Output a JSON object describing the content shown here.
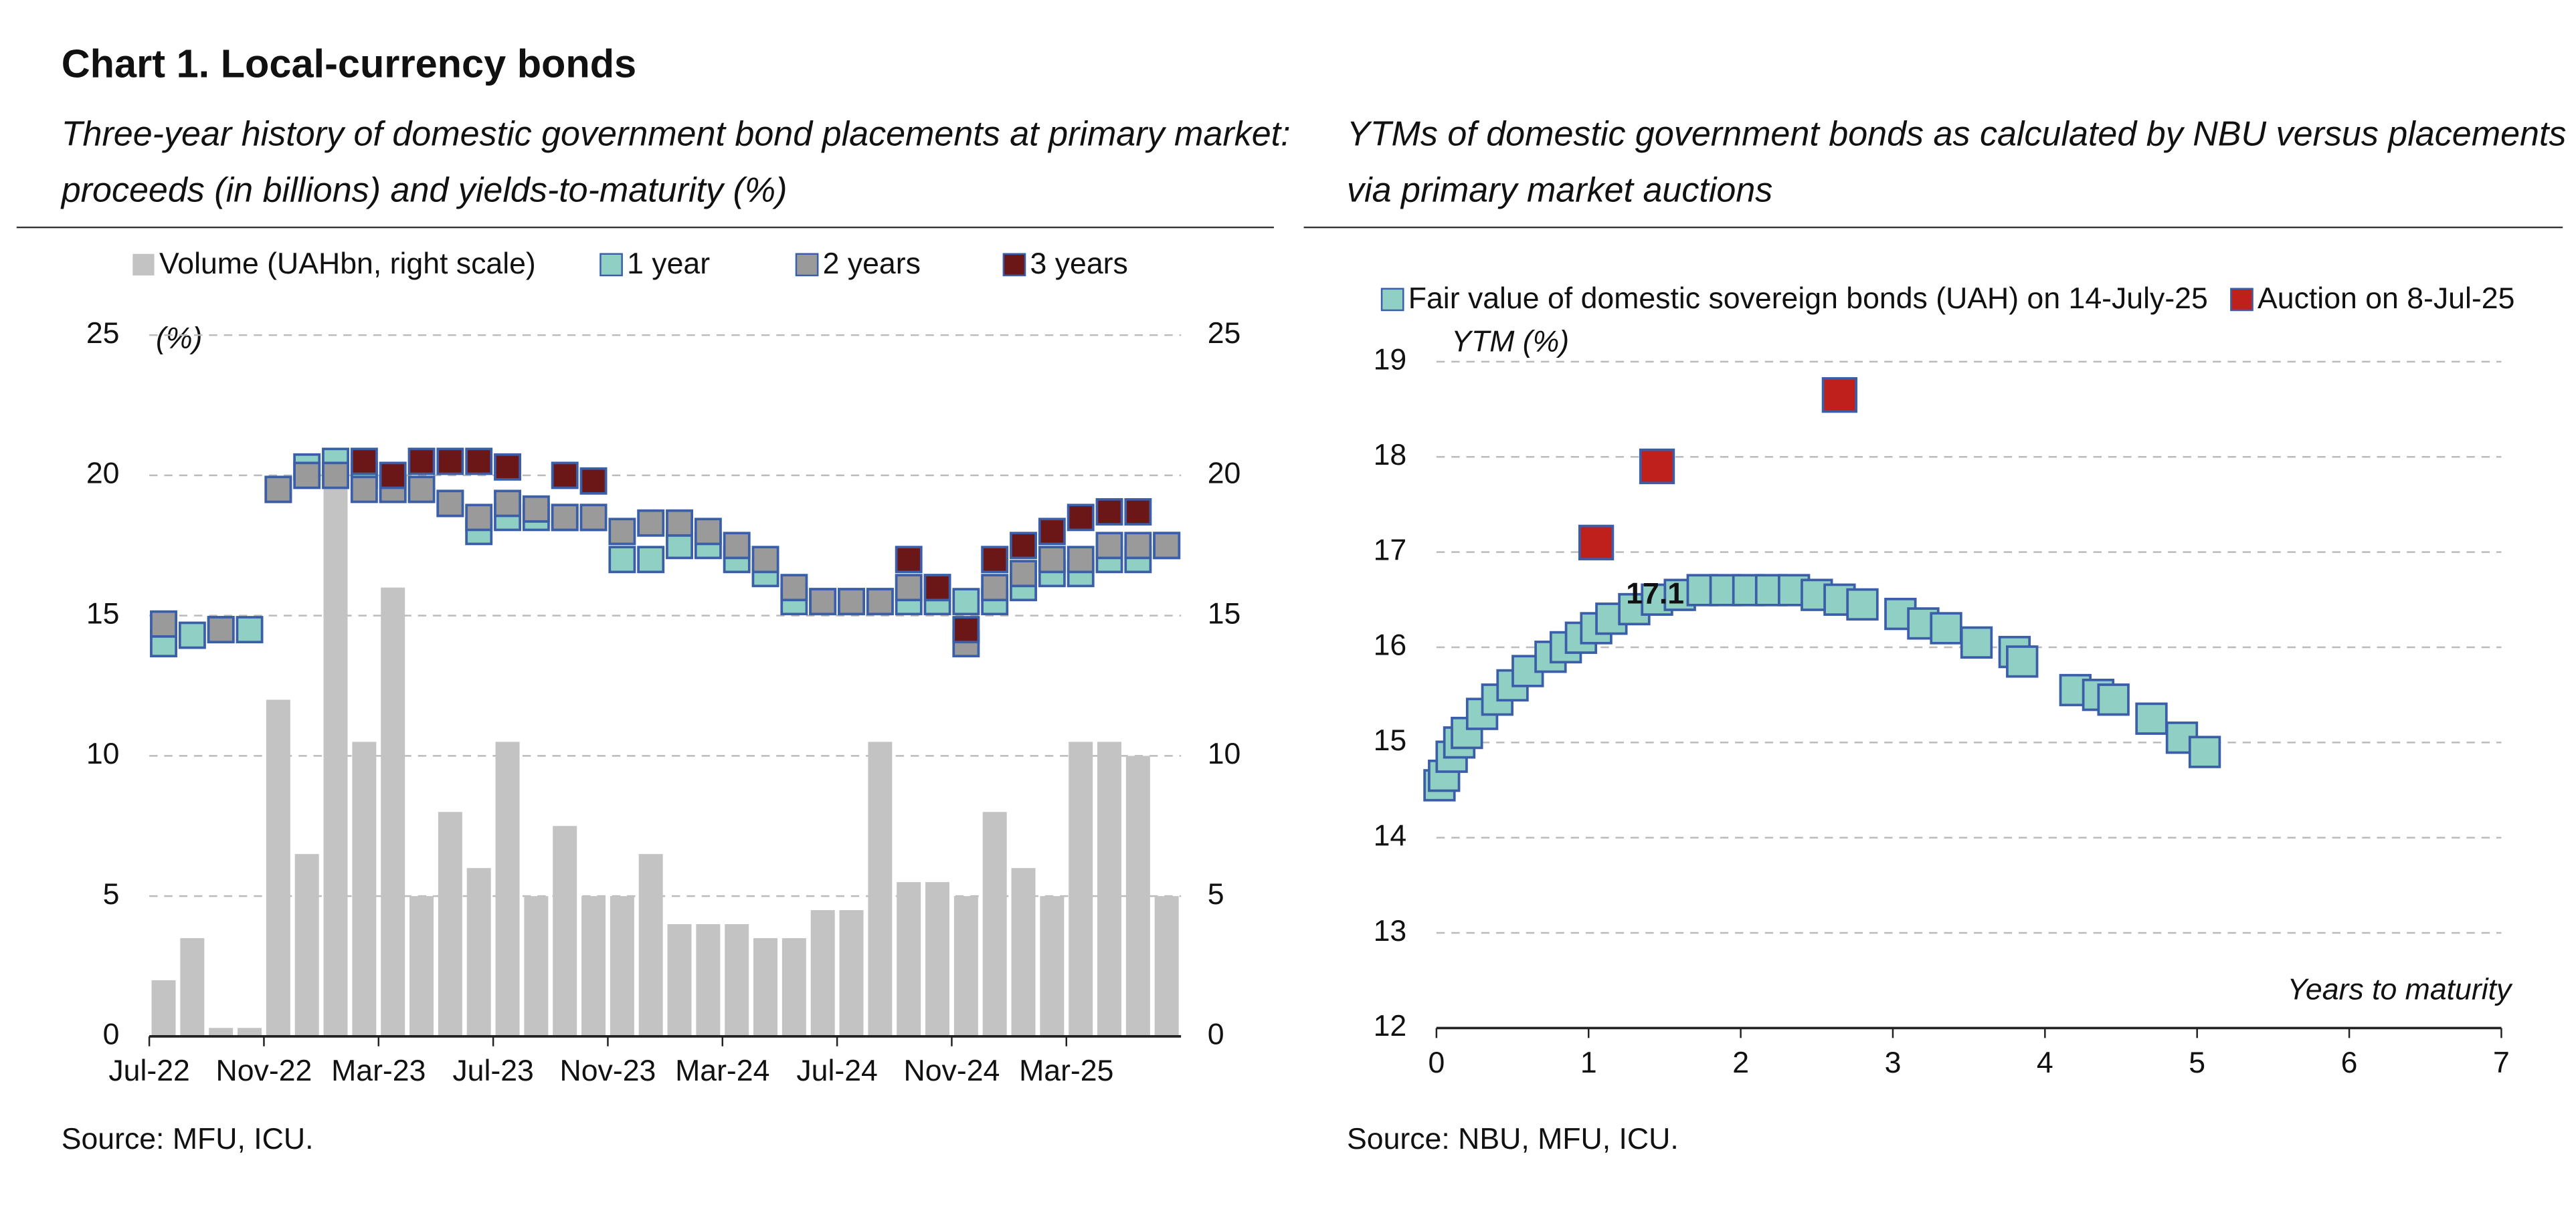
{
  "title": "Chart 1. Local-currency bonds",
  "chart_data": [
    {
      "type": "combo",
      "subtitle": [
        "Three-year history of domestic government bond placements at primary market:",
        "proceeds (in billions) and yields-to-maturity (%)"
      ],
      "ylabel": "(%)",
      "source": "Source: MFU, ICU.",
      "categories": [
        "Jul-22",
        null,
        null,
        null,
        "Nov-22",
        null,
        null,
        null,
        "Mar-23",
        null,
        null,
        null,
        "Jul-23",
        null,
        null,
        null,
        "Nov-23",
        null,
        null,
        null,
        "Mar-24",
        null,
        null,
        null,
        "Jul-24",
        null,
        null,
        null,
        "Nov-24",
        null,
        null,
        null,
        "Mar-25",
        null,
        null,
        null
      ],
      "ylim": [
        0,
        25
      ],
      "yticks": [
        0,
        5,
        10,
        15,
        20,
        25
      ],
      "y2lim": [
        0,
        25
      ],
      "y2ticks": [
        0,
        5,
        10,
        15,
        20,
        25
      ],
      "grid": true,
      "series": [
        {
          "name": "Volume (UAHbn, right scale)",
          "type": "bar",
          "axis": "y2",
          "color": "#c3c3c3",
          "values": [
            2,
            3.5,
            0.3,
            0.3,
            12,
            6.5,
            20,
            10.5,
            16,
            5,
            8,
            6,
            10.5,
            5,
            7.5,
            5,
            5,
            6.5,
            4,
            4,
            4,
            3.5,
            3.5,
            4.5,
            4.5,
            10.5,
            5.5,
            5.5,
            5,
            8,
            6,
            5,
            10.5,
            10.5,
            10,
            5
          ]
        },
        {
          "name": "1 year",
          "type": "marker",
          "color": "#8fcfc4",
          "values": [
            14,
            14.3,
            14.5,
            14.5,
            19.5,
            20.3,
            20.5,
            20,
            19.5,
            19.5,
            19,
            18,
            18.5,
            18.5,
            18.5,
            18.5,
            17,
            17,
            17.5,
            17.5,
            17,
            16.5,
            15.5,
            15.5,
            15.5,
            15.5,
            15.5,
            15.5,
            15.5,
            15.5,
            16,
            16.5,
            16.5,
            17,
            17,
            17.5
          ]
        },
        {
          "name": "2 years",
          "type": "marker",
          "color": "#9a9a9a",
          "values": [
            14.7,
            null,
            14.5,
            null,
            19.5,
            20,
            20,
            19.5,
            19.5,
            19.5,
            19,
            18.5,
            19,
            18.8,
            18.5,
            18.5,
            18,
            18.3,
            18.3,
            18,
            17.5,
            17,
            16,
            15.5,
            15.5,
            15.5,
            16,
            16,
            14,
            16,
            16.5,
            17,
            17,
            17.5,
            17.5,
            17.5
          ]
        },
        {
          "name": "3 years",
          "type": "marker",
          "color": "#6b1717",
          "values": [
            null,
            null,
            null,
            null,
            null,
            null,
            null,
            20.5,
            20,
            20.5,
            20.5,
            20.5,
            20.3,
            null,
            20,
            19.8,
            null,
            null,
            null,
            null,
            null,
            null,
            null,
            null,
            null,
            null,
            17,
            16,
            14.5,
            17,
            17.5,
            18,
            18.5,
            18.7,
            18.7,
            null
          ]
        }
      ]
    },
    {
      "type": "scatter",
      "subtitle": [
        "YTMs of domestic government bonds as calculated by NBU versus placements",
        "via primary market auctions"
      ],
      "ylabel": "YTM (%)",
      "xlabel": "Years to maturity",
      "source": "Source: NBU, MFU, ICU.",
      "xlim": [
        0,
        7
      ],
      "xticks": [
        0,
        1,
        2,
        3,
        4,
        5,
        6,
        7
      ],
      "ylim": [
        12,
        19
      ],
      "yticks": [
        12,
        13,
        14,
        15,
        16,
        17,
        18,
        19
      ],
      "grid": true,
      "series": [
        {
          "name": "Fair value of domestic sovereign bonds (UAH) on 14-July-25",
          "color": "#8fcfc4",
          "x": [
            0.02,
            0.05,
            0.1,
            0.15,
            0.2,
            0.3,
            0.4,
            0.5,
            0.6,
            0.75,
            0.85,
            0.95,
            1.05,
            1.15,
            1.3,
            1.45,
            1.6,
            1.75,
            1.9,
            2.05,
            2.2,
            2.35,
            2.5,
            2.65,
            2.8,
            3.05,
            3.2,
            3.35,
            3.55,
            3.8,
            3.85,
            4.2,
            4.35,
            4.45,
            4.7,
            4.9,
            5.05
          ],
          "values": [
            14.55,
            14.65,
            14.85,
            15,
            15.1,
            15.3,
            15.45,
            15.6,
            15.75,
            15.9,
            16,
            16.1,
            16.2,
            16.3,
            16.4,
            16.5,
            16.55,
            16.6,
            16.6,
            16.6,
            16.6,
            16.6,
            16.55,
            16.5,
            16.45,
            16.35,
            16.25,
            16.2,
            16.05,
            15.95,
            15.85,
            15.55,
            15.5,
            15.45,
            15.25,
            15.05,
            14.9
          ]
        },
        {
          "name": "Auction on 8-Jul-25",
          "color": "#c0201c",
          "x": [
            1.05,
            1.45,
            2.65
          ],
          "values": [
            17.1,
            17.9,
            18.65
          ],
          "value_labels": [
            "17.1",
            null,
            null
          ]
        }
      ]
    }
  ]
}
